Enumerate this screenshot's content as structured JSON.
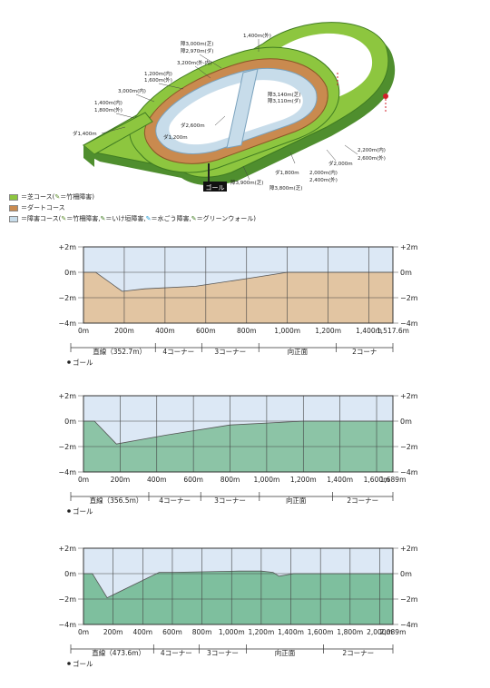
{
  "map": {
    "goal_label": "ゴール",
    "distance_labels": [
      "1,400m(外)",
      "障3,000m(芝)",
      "障2,970m(ダ)",
      "3,200m(外-内)",
      "1,200m(内)",
      "1,600m(外)",
      "3,000m(内)",
      "1,400m(内)",
      "1,800m(外)",
      "ダ1,400m",
      "障3,140m(芝)",
      "障3,110m(ダ)",
      "ダ2,600m",
      "ダ1,200m",
      "2,200m(内)",
      "2,600m(外)",
      "ダ2,000m",
      "2,000m(内)",
      "2,400m(外)",
      "ダ1,800m",
      "障3,800m(芝)",
      "障3,900m(芝)"
    ],
    "colors": {
      "turf": "#8dc63f",
      "dirt": "#c98a4f",
      "jump": "#c7dcea",
      "goal_marker": "#d11f2a"
    }
  },
  "legend": [
    {
      "text": "＝芝コース(",
      "note": "＝竹柵障害)",
      "color": "#8dc63f"
    },
    {
      "text": "＝ダートコース",
      "note": "",
      "color": "#c98a4f"
    },
    {
      "text": "＝障害コース(",
      "note": "＝竹柵障害, ",
      "extra": "＝いけ垣障害, ",
      "extra2": "＝水ごう障害, ",
      "extra3": "＝グリーンウォール)",
      "color": "#c7dcea"
    }
  ],
  "profiles": [
    {
      "fill_color": "#e2c5a2",
      "y_ticks_left": [
        "+2m",
        "0m",
        "−2m",
        "−4m"
      ],
      "y_ticks_right": [
        "+2m",
        "0m",
        "−2m",
        "−4m"
      ],
      "ylim": [
        -4,
        2
      ],
      "xlim": [
        0,
        1517.6
      ],
      "x_ticks": [
        0,
        200,
        400,
        600,
        800,
        1000,
        1200,
        1400,
        1517.6
      ],
      "x_tick_labels": [
        "0m",
        "200m",
        "400m",
        "600m",
        "800m",
        "1,000m",
        "1,200m",
        "1,400m",
        "1,517.6m"
      ],
      "x": [
        0,
        60,
        190,
        300,
        550,
        800,
        1000,
        1517.6
      ],
      "y": [
        0,
        0,
        -1.5,
        -1.3,
        -1.1,
        -0.5,
        0,
        0
      ],
      "segments": [
        {
          "label": "直線（352.7m）",
          "from": 0,
          "to": 352.7
        },
        {
          "label": "4コーナー",
          "from": 352.7,
          "to": 580
        },
        {
          "label": "3コーナー",
          "from": 580,
          "to": 860
        },
        {
          "label": "向正面",
          "from": 860,
          "to": 1240
        },
        {
          "label": "2コーナ",
          "from": 1240,
          "to": 1517.6
        }
      ],
      "goal_label": "ゴール"
    },
    {
      "fill_color": "#8cc4a6",
      "y_ticks_left": [
        "+2m",
        "0m",
        "−2m",
        "−4m"
      ],
      "y_ticks_right": [
        "+2m",
        "0m",
        "−2m",
        "−4m"
      ],
      "ylim": [
        -4,
        2
      ],
      "xlim": [
        0,
        1689
      ],
      "x_ticks": [
        0,
        200,
        400,
        600,
        800,
        1000,
        1200,
        1400,
        1600,
        1689
      ],
      "x_tick_labels": [
        "0m",
        "200m",
        "400m",
        "600m",
        "800m",
        "1,000m",
        "1,200m",
        "1,400m",
        "1,600m",
        "1,689m"
      ],
      "x": [
        0,
        60,
        180,
        450,
        800,
        1200,
        1689
      ],
      "y": [
        0,
        0,
        -1.8,
        -1.1,
        -0.3,
        0,
        0
      ],
      "segments": [
        {
          "label": "直線（356.5m）",
          "from": 0,
          "to": 356.5
        },
        {
          "label": "4コーナー",
          "from": 356.5,
          "to": 640
        },
        {
          "label": "3コーナー",
          "from": 640,
          "to": 960
        },
        {
          "label": "向正面",
          "from": 960,
          "to": 1360
        },
        {
          "label": "2コーナー",
          "from": 1360,
          "to": 1689
        }
      ],
      "goal_label": "ゴール"
    },
    {
      "fill_color": "#7ebf9e",
      "y_ticks_left": [
        "+2m",
        "0m",
        "−2m",
        "−4m"
      ],
      "y_ticks_right": [
        "+2m",
        "0m",
        "−2m",
        "−4m"
      ],
      "ylim": [
        -4,
        2
      ],
      "xlim": [
        0,
        2089
      ],
      "x_ticks": [
        0,
        200,
        400,
        600,
        800,
        1000,
        1200,
        1400,
        1600,
        1800,
        2000,
        2089
      ],
      "x_tick_labels": [
        "0m",
        "200m",
        "400m",
        "600m",
        "800m",
        "1,000m",
        "1,200m",
        "1,400m",
        "1,600m",
        "1,800m",
        "2,000m",
        "2,089m"
      ],
      "x": [
        0,
        60,
        160,
        510,
        600,
        1050,
        1200,
        1280,
        1320,
        1420,
        2089
      ],
      "y": [
        0,
        0,
        -1.9,
        0.1,
        0.1,
        0.2,
        0.2,
        0.1,
        -0.2,
        0,
        0
      ],
      "segments": [
        {
          "label": "直線（473.6m）",
          "from": 0,
          "to": 473.6
        },
        {
          "label": "4コーナー",
          "from": 473.6,
          "to": 780
        },
        {
          "label": "3コーナー",
          "from": 780,
          "to": 1100
        },
        {
          "label": "向正面",
          "from": 1100,
          "to": 1620
        },
        {
          "label": "2コーナー",
          "from": 1620,
          "to": 2089
        }
      ],
      "goal_label": "ゴール"
    }
  ]
}
